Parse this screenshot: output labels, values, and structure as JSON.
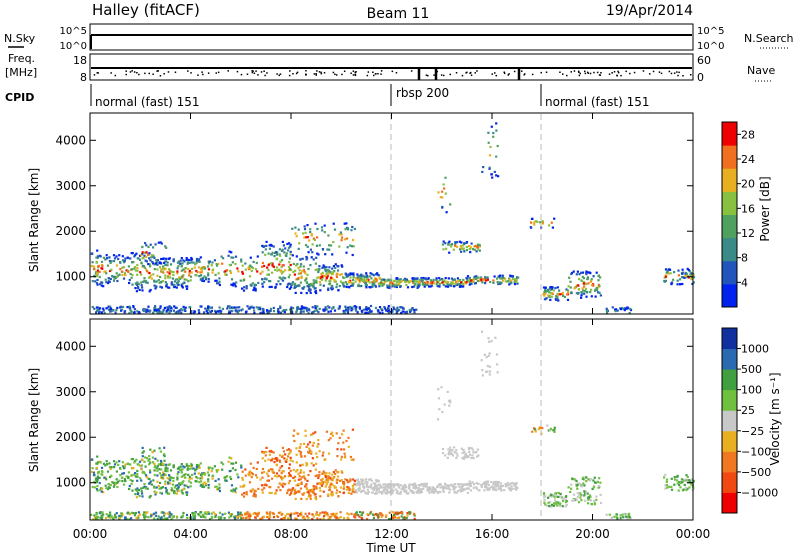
{
  "header": {
    "station": "Halley (fitACF)",
    "beam": "Beam 11",
    "date": "19/Apr/2014"
  },
  "top_panels": {
    "nsky_label": "N.Sky",
    "nsky_ticks": [
      "10^5",
      "10^0"
    ],
    "nsearch_label": "N.Search",
    "nsearch_ticks": [
      "10^5",
      "10^0"
    ],
    "freq_label": "Freq.",
    "freq_unit": "[MHz]",
    "freq_ticks": [
      "18",
      "8"
    ],
    "nave_label": "Nave",
    "nave_ticks": [
      "60",
      "0"
    ],
    "cpid_label": "CPID",
    "cpid_segments": [
      {
        "label": "normal (fast) 151",
        "start_h": 0
      },
      {
        "label": "rbsp 200",
        "start_h": 12
      },
      {
        "label": "normal (fast) 151",
        "start_h": 18
      }
    ]
  },
  "colors": {
    "power_scale": [
      "#0022ee",
      "#2255bb",
      "#3a8a88",
      "#50a060",
      "#88c040",
      "#e8b020",
      "#f07020",
      "#ee0000"
    ],
    "velocity_scale": [
      "#ee0000",
      "#f04810",
      "#f07820",
      "#e8b020",
      "#c8c8c8",
      "#70c040",
      "#40a040",
      "#2a6ab0",
      "#1030a0"
    ],
    "gridline": "#bbbbbb"
  },
  "chart_data": [
    {
      "type": "heatmap",
      "ylabel": "Slant Range [km]",
      "xlabel": "Time UT",
      "y_ticks": [
        "1000",
        "2000",
        "3000",
        "4000"
      ],
      "x_ticks": [
        "00:00",
        "04:00",
        "08:00",
        "12:00",
        "16:00",
        "20:00",
        "00:00"
      ],
      "xlim_hours": [
        0,
        24
      ],
      "ylim_km": [
        180,
        4600
      ],
      "colorbar_label": "Power [dB]",
      "colorbar_ticks": [
        "28",
        "24",
        "20",
        "16",
        "12",
        "8",
        "4"
      ],
      "colorbar_range": [
        0,
        30
      ],
      "mode_change_lines_h": [
        12,
        18
      ]
    },
    {
      "type": "heatmap",
      "ylabel": "Slant Range [km]",
      "xlabel": "Time UT",
      "y_ticks": [
        "1000",
        "2000",
        "3000",
        "4000"
      ],
      "x_ticks": [
        "00:00",
        "04:00",
        "08:00",
        "12:00",
        "16:00",
        "20:00",
        "00:00"
      ],
      "xlim_hours": [
        0,
        24
      ],
      "ylim_km": [
        180,
        4600
      ],
      "colorbar_label": "Velocity [m s⁻¹]",
      "colorbar_ticks": [
        "1000",
        "500",
        "100",
        "25",
        "−25",
        "−100",
        "−500",
        "−1000"
      ],
      "mode_change_lines_h": [
        12,
        18
      ]
    }
  ],
  "x_axis": {
    "label": "Time UT"
  }
}
